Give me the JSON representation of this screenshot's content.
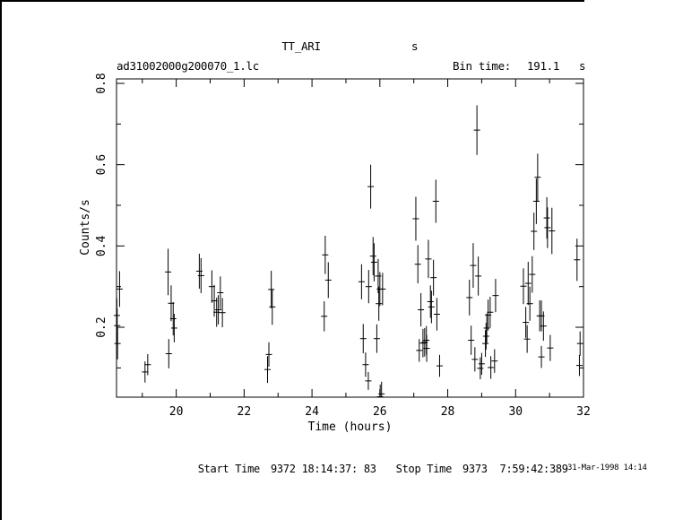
{
  "window": {
    "background": "#ffffff",
    "foreground": "#000000"
  },
  "header": {
    "title": "TT_ARI",
    "title_unit": "s",
    "file": "ad31002000g200070_1.lc",
    "bin_time_label": "Bin time:",
    "bin_time_value": "191.1",
    "bin_time_unit": "s"
  },
  "footer": {
    "start_label": "Start Time",
    "start_value": "9372 18:14:37: 83",
    "stop_label": "Stop Time",
    "stop_value": "9373  7:59:42:389",
    "datestamp": "31-Mar-1998 14:14"
  },
  "chart_data": {
    "type": "scatter",
    "marker": "cross-with-vertical-error-bar",
    "title": "TT_ARI",
    "xlabel": "Time (hours)",
    "ylabel": "Counts/s",
    "xlim": [
      18.24,
      32.0
    ],
    "ylim": [
      0.028,
      0.811
    ],
    "x_major_ticks": [
      20,
      22,
      24,
      26,
      28,
      30,
      32
    ],
    "x_minor_ticks": [
      19,
      21,
      23,
      25,
      27,
      29,
      31
    ],
    "y_major_ticks": [
      0.2,
      0.4,
      0.6,
      0.8
    ],
    "y_minor_ticks": [
      0.1,
      0.3,
      0.5,
      0.7
    ],
    "grid": false,
    "legend": null,
    "points": [
      [
        18.25,
        0.229,
        0.042
      ],
      [
        18.26,
        0.204,
        0.042
      ],
      [
        18.27,
        0.16,
        0.039
      ],
      [
        18.33,
        0.294,
        0.044
      ],
      [
        19.08,
        0.09,
        0.026
      ],
      [
        19.16,
        0.108,
        0.026
      ],
      [
        19.76,
        0.336,
        0.057
      ],
      [
        19.78,
        0.135,
        0.036
      ],
      [
        19.85,
        0.259,
        0.044
      ],
      [
        19.91,
        0.221,
        0.041
      ],
      [
        19.94,
        0.198,
        0.035
      ],
      [
        20.68,
        0.338,
        0.043
      ],
      [
        20.73,
        0.327,
        0.043
      ],
      [
        21.05,
        0.3,
        0.04
      ],
      [
        21.12,
        0.265,
        0.039
      ],
      [
        21.19,
        0.237,
        0.036
      ],
      [
        21.24,
        0.243,
        0.036
      ],
      [
        21.3,
        0.285,
        0.04
      ],
      [
        21.36,
        0.236,
        0.036
      ],
      [
        22.69,
        0.096,
        0.033
      ],
      [
        22.73,
        0.133,
        0.03
      ],
      [
        22.8,
        0.293,
        0.046
      ],
      [
        22.83,
        0.25,
        0.044
      ],
      [
        24.36,
        0.227,
        0.037
      ],
      [
        24.39,
        0.378,
        0.047
      ],
      [
        24.48,
        0.316,
        0.044
      ],
      [
        25.46,
        0.312,
        0.043
      ],
      [
        25.51,
        0.172,
        0.036
      ],
      [
        25.58,
        0.108,
        0.03
      ],
      [
        25.66,
        0.068,
        0.022
      ],
      [
        25.67,
        0.3,
        0.041
      ],
      [
        25.73,
        0.546,
        0.054
      ],
      [
        25.8,
        0.375,
        0.047
      ],
      [
        25.83,
        0.36,
        0.047
      ],
      [
        25.91,
        0.172,
        0.035
      ],
      [
        25.95,
        0.326,
        0.042
      ],
      [
        25.97,
        0.258,
        0.042
      ],
      [
        26.0,
        0.294,
        0.042
      ],
      [
        26.01,
        0.029,
        0.03
      ],
      [
        26.05,
        0.036,
        0.03
      ],
      [
        26.08,
        0.294,
        0.04
      ],
      [
        27.06,
        0.467,
        0.054
      ],
      [
        27.12,
        0.355,
        0.047
      ],
      [
        27.16,
        0.143,
        0.028
      ],
      [
        27.21,
        0.243,
        0.041
      ],
      [
        27.27,
        0.161,
        0.035
      ],
      [
        27.32,
        0.163,
        0.035
      ],
      [
        27.37,
        0.168,
        0.035
      ],
      [
        27.38,
        0.148,
        0.033
      ],
      [
        27.43,
        0.368,
        0.047
      ],
      [
        27.49,
        0.263,
        0.04
      ],
      [
        27.52,
        0.25,
        0.04
      ],
      [
        27.58,
        0.322,
        0.044
      ],
      [
        27.65,
        0.51,
        0.053
      ],
      [
        27.68,
        0.232,
        0.04
      ],
      [
        27.76,
        0.105,
        0.027
      ],
      [
        28.64,
        0.273,
        0.044
      ],
      [
        28.69,
        0.168,
        0.036
      ],
      [
        28.75,
        0.352,
        0.055
      ],
      [
        28.8,
        0.121,
        0.03
      ],
      [
        28.86,
        0.685,
        0.061
      ],
      [
        28.9,
        0.326,
        0.048
      ],
      [
        28.96,
        0.099,
        0.027
      ],
      [
        29.0,
        0.11,
        0.027
      ],
      [
        29.11,
        0.16,
        0.033
      ],
      [
        29.13,
        0.178,
        0.033
      ],
      [
        29.15,
        0.198,
        0.036
      ],
      [
        29.19,
        0.23,
        0.038
      ],
      [
        29.25,
        0.237,
        0.038
      ],
      [
        29.27,
        0.101,
        0.028
      ],
      [
        29.38,
        0.117,
        0.029
      ],
      [
        29.41,
        0.278,
        0.041
      ],
      [
        30.23,
        0.301,
        0.044
      ],
      [
        30.3,
        0.212,
        0.038
      ],
      [
        30.34,
        0.171,
        0.034
      ],
      [
        30.37,
        0.308,
        0.053
      ],
      [
        30.42,
        0.258,
        0.042
      ],
      [
        30.49,
        0.33,
        0.045
      ],
      [
        30.54,
        0.436,
        0.046
      ],
      [
        30.61,
        0.51,
        0.056
      ],
      [
        30.65,
        0.569,
        0.058
      ],
      [
        30.71,
        0.228,
        0.038
      ],
      [
        30.76,
        0.228,
        0.038
      ],
      [
        30.76,
        0.127,
        0.027
      ],
      [
        30.82,
        0.203,
        0.036
      ],
      [
        30.92,
        0.469,
        0.051
      ],
      [
        30.94,
        0.445,
        0.05
      ],
      [
        31.02,
        0.149,
        0.032
      ],
      [
        31.07,
        0.437,
        0.057
      ],
      [
        31.81,
        0.366,
        0.052
      ],
      [
        31.88,
        0.106,
        0.026
      ],
      [
        31.9,
        0.16,
        0.03
      ]
    ]
  }
}
